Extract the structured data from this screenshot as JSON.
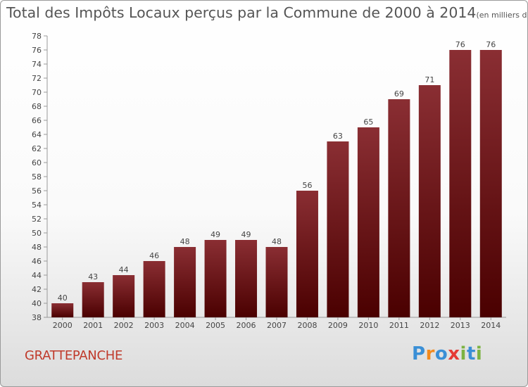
{
  "title": {
    "main": "Total des Impôts Locaux perçus par la Commune de 2000 à 2014",
    "unit": "(en milliers d'€)"
  },
  "commune": "GRATTEPANCHE",
  "logo": {
    "text": "Proxiti",
    "letters": [
      "P",
      "r",
      "o",
      "x",
      "i",
      "t",
      "i"
    ],
    "colors": [
      "#3a8fd6",
      "#f28a1e",
      "#3a8fd6",
      "#e53935",
      "#7cb342",
      "#3a8fd6",
      "#7cb342"
    ]
  },
  "chart_data": {
    "type": "bar",
    "categories": [
      "2000",
      "2001",
      "2002",
      "2003",
      "2004",
      "2005",
      "2006",
      "2007",
      "2008",
      "2009",
      "2010",
      "2011",
      "2012",
      "2013",
      "2014"
    ],
    "values": [
      40,
      43,
      44,
      46,
      48,
      49,
      49,
      48,
      56,
      63,
      65,
      69,
      71,
      76,
      76
    ],
    "ylim": [
      38,
      78
    ],
    "yticks": [
      38,
      40,
      42,
      44,
      46,
      48,
      50,
      52,
      54,
      56,
      58,
      60,
      62,
      64,
      66,
      68,
      70,
      72,
      74,
      76,
      78
    ],
    "grid": false,
    "bar_color": "#7a1a1e"
  }
}
